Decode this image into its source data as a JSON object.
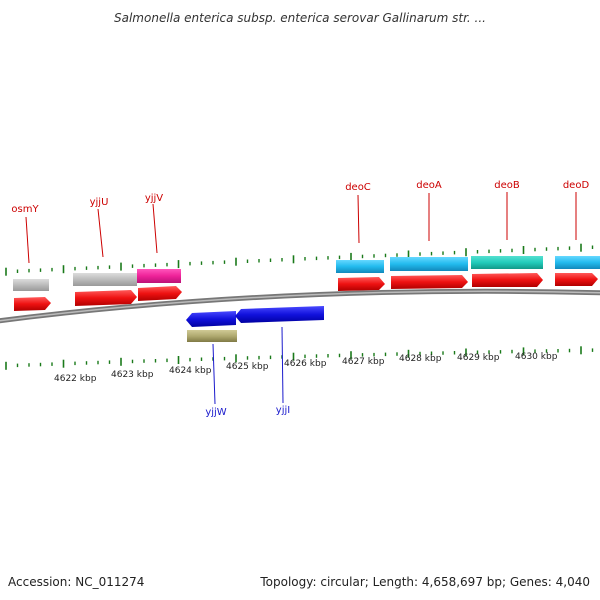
{
  "title": "Salmonella enterica subsp. enterica serovar Gallinarum str. ...",
  "footer": {
    "accession": "Accession: NC_011274",
    "summary": "Topology: circular; Length: 4,658,697 bp; Genes: 4,040"
  },
  "scale": {
    "labels": [
      "4622 kbp",
      "4623 kbp",
      "4624 kbp",
      "4625 kbp",
      "4626 kbp",
      "4627 kbp",
      "4628 kbp",
      "4629 kbp",
      "4630 kbp"
    ]
  },
  "genes_forward": [
    {
      "name": "osmY"
    },
    {
      "name": "yjjU"
    },
    {
      "name": "yjjV"
    },
    {
      "name": "deoC"
    },
    {
      "name": "deoA"
    },
    {
      "name": "deoB"
    },
    {
      "name": "deoD"
    }
  ],
  "genes_reverse": [
    {
      "name": "yjjW"
    },
    {
      "name": "yjjI"
    }
  ],
  "colors": {
    "cds": "#ff1a1a",
    "forward_label": "#cc0000",
    "reverse_label": "#1a1acc",
    "reverse_cds": "#1a1aee",
    "backbone": "#888888",
    "tick": "#1a7a1a",
    "gray": "#c0c0c0",
    "magenta": "#ee2299",
    "cyan": "#22bbee",
    "teal": "#22ccbb",
    "olive": "#b0aa70"
  }
}
